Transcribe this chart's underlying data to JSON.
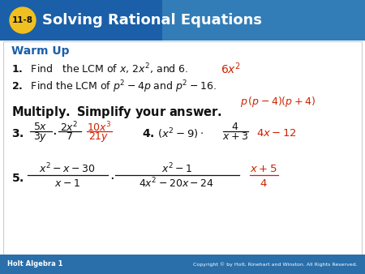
{
  "title_num": "11-8",
  "title_text": "Solving Rational Equations",
  "header_bg": "#1a5fa8",
  "header_bg_light": "#4a9cc7",
  "title_circle_color": "#f0c020",
  "footer_bg": "#2a6faa",
  "footer_left": "Holt Algebra 1",
  "footer_right": "Copyright © by Holt, Rinehart and Winston. All Rights Reserved.",
  "warmup_color": "#1a5fa8",
  "black": "#111111",
  "red": "#cc2200",
  "white": "#ffffff",
  "body_bg": "#ffffff",
  "body_border": "#cccccc"
}
